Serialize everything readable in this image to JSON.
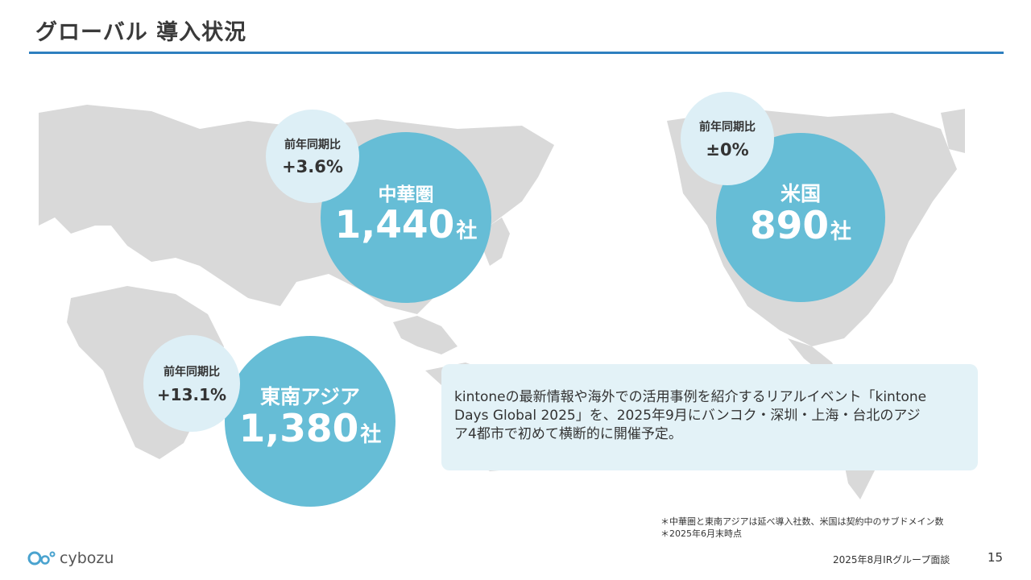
{
  "title": "グローバル 導入状況",
  "regions": {
    "china": {
      "name": "中華圏",
      "count": "1,440",
      "unit": "社",
      "yoy_label": "前年同期比",
      "yoy_value": "+3.6%"
    },
    "usa": {
      "name": "米国",
      "count": "890",
      "unit": "社",
      "yoy_label": "前年同期比",
      "yoy_value": "±0%"
    },
    "sea": {
      "name": "東南アジア",
      "count": "1,380",
      "unit": "社",
      "yoy_label": "前年同期比",
      "yoy_value": "+13.1%"
    }
  },
  "info": {
    "line1": "kintoneの最新情報や海外での活用事例を紹介するリアルイベント「kintone",
    "line2": "Days Global 2025」を、2025年9月にバンコク・深圳・上海・台北のアジ",
    "line3": "ア4都市で初めて横断的に開催予定。"
  },
  "notes": [
    "＊中華圏と東南アジアは延べ導入社数、米国は契約中のサブドメイン数",
    "＊2025年6月末時点"
  ],
  "logo": "cybozu",
  "footer": {
    "text": "2025年8月IRグループ面談",
    "page": "15"
  },
  "colors": {
    "accent": "#2e7fbf",
    "bubble": "#66bdd6",
    "yoy_bubble": "#ddeff6",
    "map": "#d9d9d9",
    "info_bg": "#e3f2f7"
  }
}
